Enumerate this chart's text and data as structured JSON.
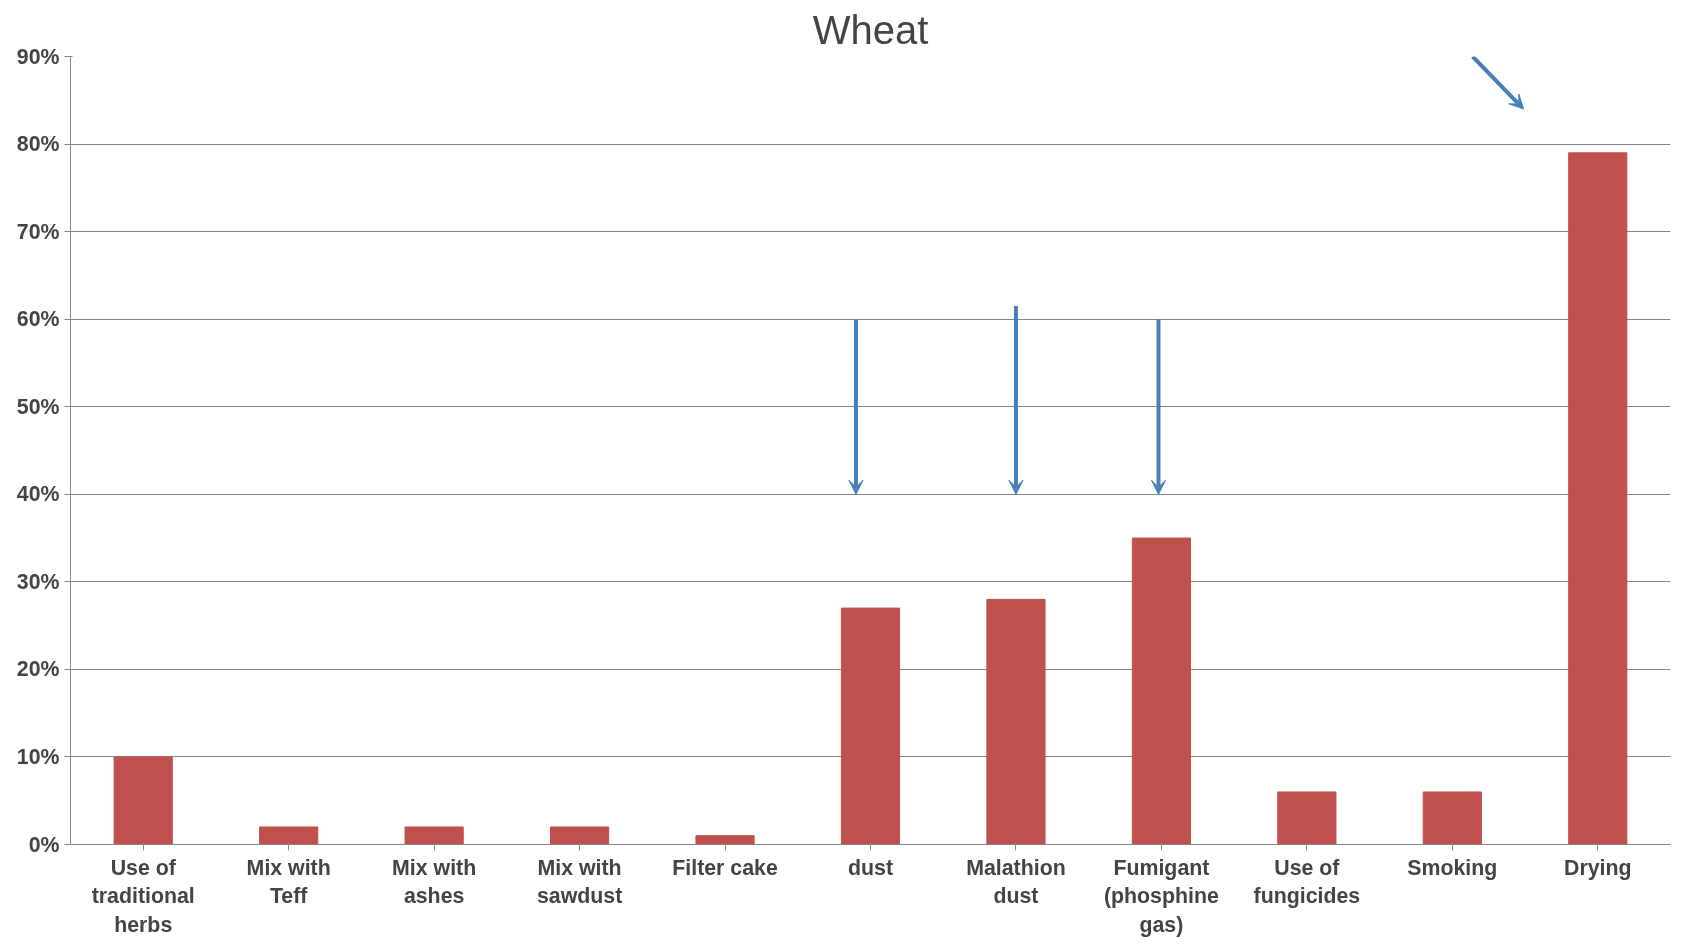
{
  "chart_data": {
    "type": "bar",
    "title": "Wheat",
    "categories": [
      "Use of traditional herbs",
      "Mix with Teff",
      "Mix with ashes",
      "Mix with sawdust",
      "Filter cake",
      "dust",
      "Malathion dust",
      "Fumigant (phosphine gas)",
      "Use of fungicides",
      "Smoking",
      "Drying"
    ],
    "values": [
      10,
      2,
      2,
      2,
      1,
      27,
      28,
      35,
      6,
      6,
      79
    ],
    "color": "#c0504d",
    "ylim": [
      0,
      90
    ],
    "yticks": [
      {
        "value": 0,
        "label": "0%"
      },
      {
        "value": 10,
        "label": "10%"
      },
      {
        "value": 20,
        "label": "20%"
      },
      {
        "value": 30,
        "label": "30%"
      },
      {
        "value": 40,
        "label": "40%"
      },
      {
        "value": 50,
        "label": "50%"
      },
      {
        "value": 60,
        "label": "60%"
      },
      {
        "value": 70,
        "label": "70%"
      },
      {
        "value": 80,
        "label": "80%"
      },
      {
        "value": 90,
        "label": "90%"
      }
    ],
    "grid": "y"
  }
}
